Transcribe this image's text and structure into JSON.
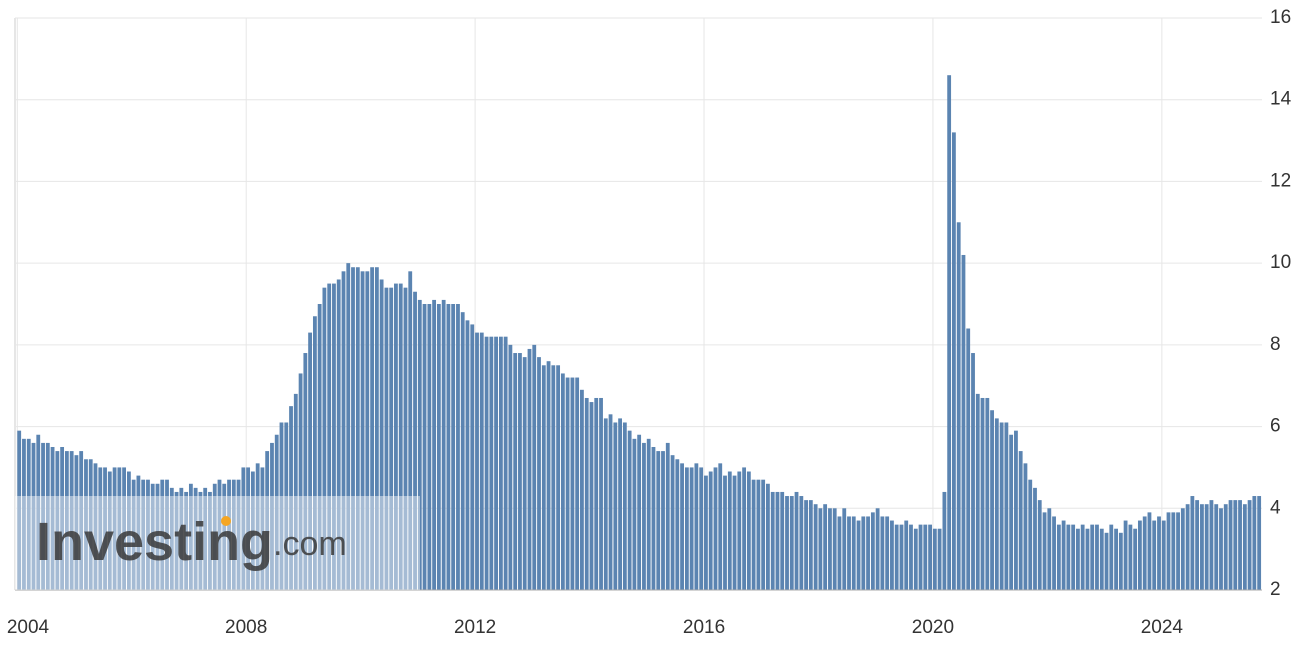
{
  "chart_data": {
    "type": "bar",
    "x": [
      2004,
      2004.083,
      2004.167,
      2004.25,
      2004.333,
      2004.417,
      2004.5,
      2004.583,
      2004.667,
      2004.75,
      2004.833,
      2004.917,
      2005,
      2005.083,
      2005.167,
      2005.25,
      2005.333,
      2005.417,
      2005.5,
      2005.583,
      2005.667,
      2005.75,
      2005.833,
      2005.917,
      2006,
      2006.083,
      2006.167,
      2006.25,
      2006.333,
      2006.417,
      2006.5,
      2006.583,
      2006.667,
      2006.75,
      2006.833,
      2006.917,
      2007,
      2007.083,
      2007.167,
      2007.25,
      2007.333,
      2007.417,
      2007.5,
      2007.583,
      2007.667,
      2007.75,
      2007.833,
      2007.917,
      2008,
      2008.083,
      2008.167,
      2008.25,
      2008.333,
      2008.417,
      2008.5,
      2008.583,
      2008.667,
      2008.75,
      2008.833,
      2008.917,
      2009,
      2009.083,
      2009.167,
      2009.25,
      2009.333,
      2009.417,
      2009.5,
      2009.583,
      2009.667,
      2009.75,
      2009.833,
      2009.917,
      2010,
      2010.083,
      2010.167,
      2010.25,
      2010.333,
      2010.417,
      2010.5,
      2010.583,
      2010.667,
      2010.75,
      2010.833,
      2010.917,
      2011,
      2011.083,
      2011.167,
      2011.25,
      2011.333,
      2011.417,
      2011.5,
      2011.583,
      2011.667,
      2011.75,
      2011.833,
      2011.917,
      2012,
      2012.083,
      2012.167,
      2012.25,
      2012.333,
      2012.417,
      2012.5,
      2012.583,
      2012.667,
      2012.75,
      2012.833,
      2012.917,
      2013,
      2013.083,
      2013.167,
      2013.25,
      2013.333,
      2013.417,
      2013.5,
      2013.583,
      2013.667,
      2013.75,
      2013.833,
      2013.917,
      2014,
      2014.083,
      2014.167,
      2014.25,
      2014.333,
      2014.417,
      2014.5,
      2014.583,
      2014.667,
      2014.75,
      2014.833,
      2014.917,
      2015,
      2015.083,
      2015.167,
      2015.25,
      2015.333,
      2015.417,
      2015.5,
      2015.583,
      2015.667,
      2015.75,
      2015.833,
      2015.917,
      2016,
      2016.083,
      2016.167,
      2016.25,
      2016.333,
      2016.417,
      2016.5,
      2016.583,
      2016.667,
      2016.75,
      2016.833,
      2016.917,
      2017,
      2017.083,
      2017.167,
      2017.25,
      2017.333,
      2017.417,
      2017.5,
      2017.583,
      2017.667,
      2017.75,
      2017.833,
      2017.917,
      2018,
      2018.083,
      2018.167,
      2018.25,
      2018.333,
      2018.417,
      2018.5,
      2018.583,
      2018.667,
      2018.75,
      2018.833,
      2018.917,
      2019,
      2019.083,
      2019.167,
      2019.25,
      2019.333,
      2019.417,
      2019.5,
      2019.583,
      2019.667,
      2019.75,
      2019.833,
      2019.917,
      2020,
      2020.083,
      2020.167,
      2020.25,
      2020.333,
      2020.417,
      2020.5,
      2020.583,
      2020.667,
      2020.75,
      2020.833,
      2020.917,
      2021,
      2021.083,
      2021.167,
      2021.25,
      2021.333,
      2021.417,
      2021.5,
      2021.583,
      2021.667,
      2021.75,
      2021.833,
      2021.917,
      2022,
      2022.083,
      2022.167,
      2022.25,
      2022.333,
      2022.417,
      2022.5,
      2022.583,
      2022.667,
      2022.75,
      2022.833,
      2022.917,
      2023,
      2023.083,
      2023.167,
      2023.25,
      2023.333,
      2023.417,
      2023.5,
      2023.583,
      2023.667,
      2023.75,
      2023.833,
      2023.917,
      2024,
      2024.083,
      2024.167,
      2024.25,
      2024.333,
      2024.417,
      2024.5,
      2024.583,
      2024.667,
      2024.75,
      2024.833,
      2024.917,
      2025,
      2025.083,
      2025.167,
      2025.25,
      2025.333,
      2025.417,
      2025.5,
      2025.583,
      2025.667
    ],
    "values": [
      5.9,
      5.7,
      5.7,
      5.6,
      5.8,
      5.6,
      5.6,
      5.5,
      5.4,
      5.5,
      5.4,
      5.4,
      5.3,
      5.4,
      5.2,
      5.2,
      5.1,
      5.0,
      5.0,
      4.9,
      5.0,
      5.0,
      5.0,
      4.9,
      4.7,
      4.8,
      4.7,
      4.7,
      4.6,
      4.6,
      4.7,
      4.7,
      4.5,
      4.4,
      4.5,
      4.4,
      4.6,
      4.5,
      4.4,
      4.5,
      4.4,
      4.6,
      4.7,
      4.6,
      4.7,
      4.7,
      4.7,
      5.0,
      5.0,
      4.9,
      5.1,
      5.0,
      5.4,
      5.6,
      5.8,
      6.1,
      6.1,
      6.5,
      6.8,
      7.3,
      7.8,
      8.3,
      8.7,
      9.0,
      9.4,
      9.5,
      9.5,
      9.6,
      9.8,
      10.0,
      9.9,
      9.9,
      9.8,
      9.8,
      9.9,
      9.9,
      9.6,
      9.4,
      9.4,
      9.5,
      9.5,
      9.4,
      9.8,
      9.3,
      9.1,
      9.0,
      9.0,
      9.1,
      9.0,
      9.1,
      9.0,
      9.0,
      9.0,
      8.8,
      8.6,
      8.5,
      8.3,
      8.3,
      8.2,
      8.2,
      8.2,
      8.2,
      8.2,
      8.0,
      7.8,
      7.8,
      7.7,
      7.9,
      8.0,
      7.7,
      7.5,
      7.6,
      7.5,
      7.5,
      7.3,
      7.2,
      7.2,
      7.2,
      6.9,
      6.7,
      6.6,
      6.7,
      6.7,
      6.2,
      6.3,
      6.1,
      6.2,
      6.1,
      5.9,
      5.7,
      5.8,
      5.6,
      5.7,
      5.5,
      5.4,
      5.4,
      5.6,
      5.3,
      5.2,
      5.1,
      5.0,
      5.0,
      5.1,
      5.0,
      4.8,
      4.9,
      5.0,
      5.1,
      4.8,
      4.9,
      4.8,
      4.9,
      5.0,
      4.9,
      4.7,
      4.7,
      4.7,
      4.6,
      4.4,
      4.4,
      4.4,
      4.3,
      4.3,
      4.4,
      4.3,
      4.2,
      4.2,
      4.1,
      4.0,
      4.1,
      4.0,
      4.0,
      3.8,
      4.0,
      3.8,
      3.8,
      3.7,
      3.8,
      3.8,
      3.9,
      4.0,
      3.8,
      3.8,
      3.7,
      3.6,
      3.6,
      3.7,
      3.6,
      3.5,
      3.6,
      3.6,
      3.6,
      3.5,
      3.5,
      4.4,
      14.6,
      13.2,
      11.0,
      10.2,
      8.4,
      7.8,
      6.8,
      6.7,
      6.7,
      6.4,
      6.2,
      6.1,
      6.1,
      5.8,
      5.9,
      5.4,
      5.1,
      4.7,
      4.5,
      4.2,
      3.9,
      4.0,
      3.8,
      3.6,
      3.7,
      3.6,
      3.6,
      3.5,
      3.6,
      3.5,
      3.6,
      3.6,
      3.5,
      3.4,
      3.6,
      3.5,
      3.4,
      3.7,
      3.6,
      3.5,
      3.7,
      3.8,
      3.9,
      3.7,
      3.8,
      3.7,
      3.9,
      3.9,
      3.9,
      4.0,
      4.1,
      4.3,
      4.2,
      4.1,
      4.1,
      4.2,
      4.1,
      4.0,
      4.1,
      4.2,
      4.2,
      4.2,
      4.1,
      4.2,
      4.3,
      4.3
    ],
    "color": "#5b84b1",
    "xlim": [
      2003.96,
      2025.75
    ],
    "xticks": [
      2004,
      2008,
      2012,
      2016,
      2020,
      2024
    ],
    "ylim": [
      2,
      16
    ],
    "yticks": [
      2,
      4,
      6,
      8,
      10,
      12,
      14,
      16
    ],
    "grid": true,
    "watermark": {
      "brand": "Investing",
      "suffix": ".com"
    }
  }
}
